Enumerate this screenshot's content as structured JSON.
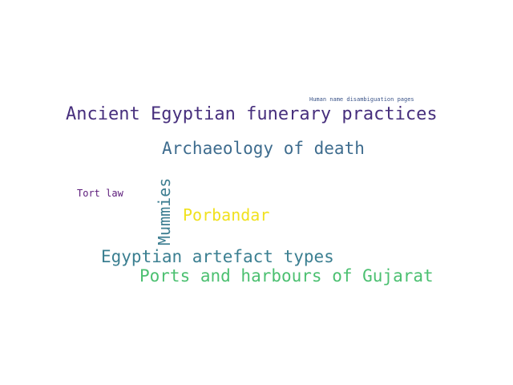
{
  "word_cloud": {
    "words": [
      {
        "text": "Ancient Egyptian funerary practices",
        "color": "#472f7d"
      },
      {
        "text": "Archaeology of death",
        "color": "#3e6c8e"
      },
      {
        "text": "Egyptian artefact types",
        "color": "#3b7f91"
      },
      {
        "text": "Ports and harbours of Gujarat",
        "color": "#4cc071"
      },
      {
        "text": "Porbandar",
        "color": "#f0e11e"
      },
      {
        "text": "Tort law",
        "color": "#5b1a7a"
      },
      {
        "text": "Human name disambiguation pages",
        "color": "#3b5489"
      },
      {
        "text": "Mummies",
        "color": "#3e7e91"
      }
    ]
  }
}
